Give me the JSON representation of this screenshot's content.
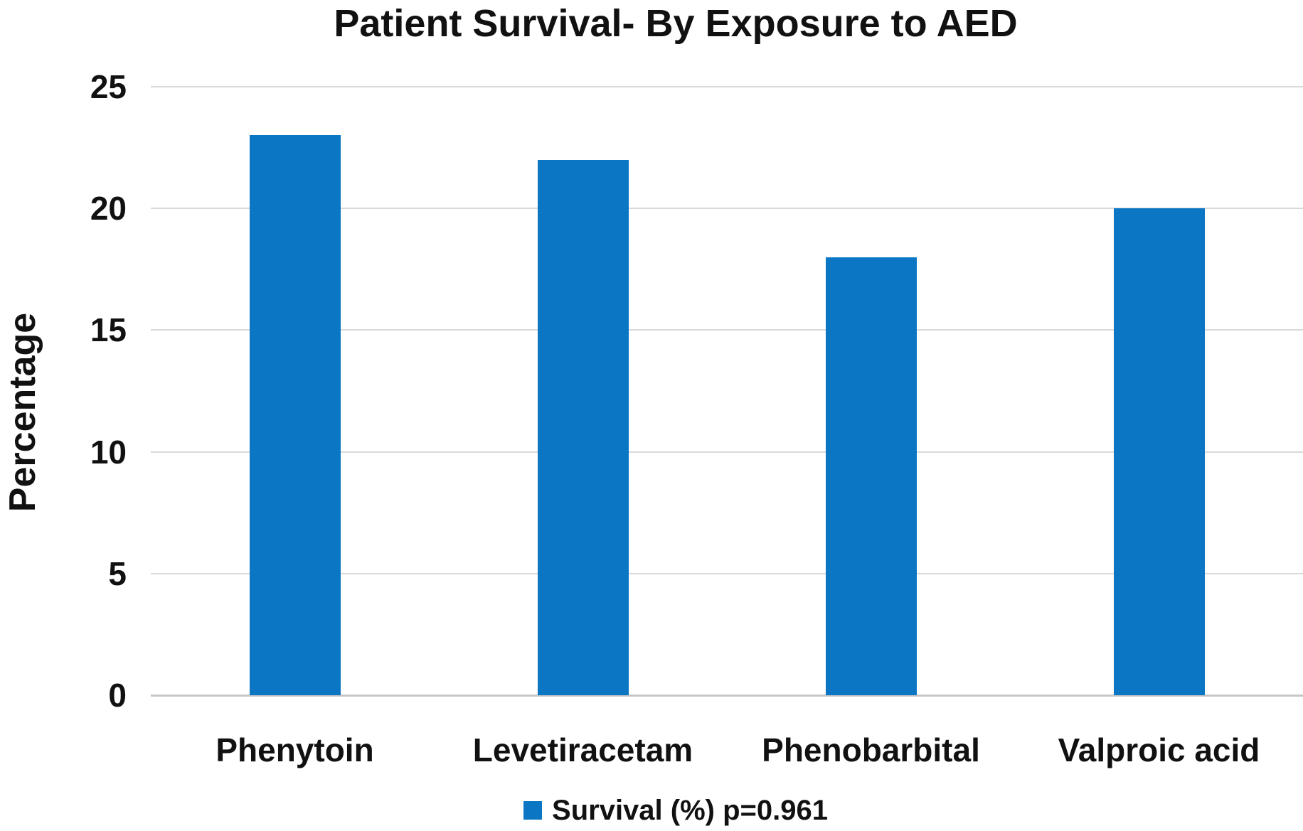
{
  "chart_data": {
    "type": "bar",
    "title": "Patient Survival- By Exposure to AED",
    "ylabel": "Percentage",
    "xlabel": "",
    "categories": [
      "Phenytoin",
      "Levetiracetam",
      "Phenobarbital",
      "Valproic acid"
    ],
    "values": [
      23,
      22,
      18,
      20
    ],
    "ylim": [
      0,
      25
    ],
    "yticks": [
      0,
      5,
      10,
      15,
      20,
      25
    ],
    "grid": true,
    "legend": {
      "position": "bottom",
      "entries": [
        "Survival (%) p=0.961"
      ]
    },
    "colors": {
      "bar": "#0b76c3",
      "gridline": "#d9d9d9",
      "baseline": "#c6c6c6",
      "text": "#111111"
    }
  }
}
